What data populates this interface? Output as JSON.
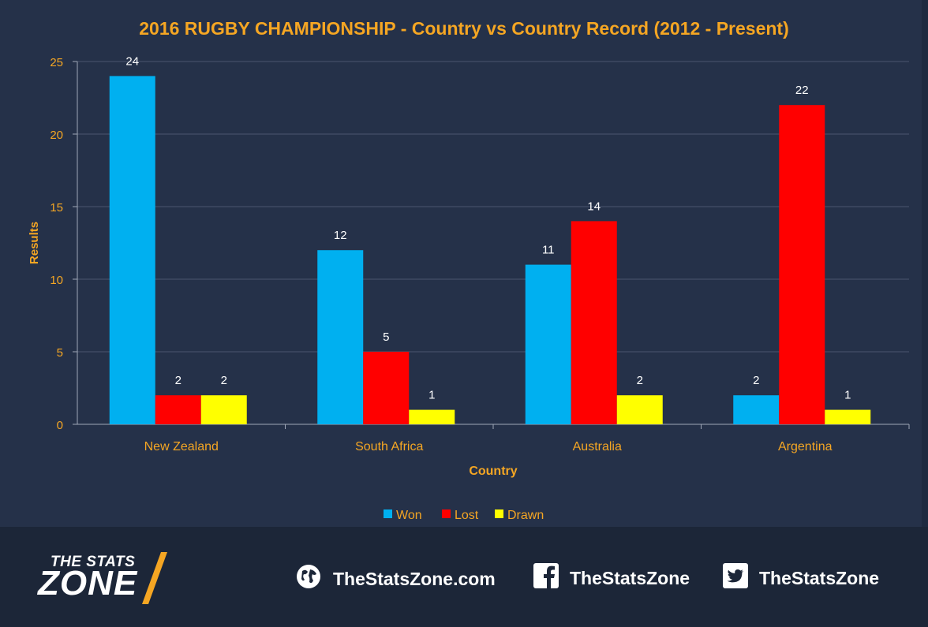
{
  "chart_data": {
    "type": "bar",
    "title": "2016 RUGBY CHAMPIONSHIP - Country vs Country Record  (2012 - Present)",
    "xlabel": "Country",
    "ylabel": "Results",
    "categories": [
      "New Zealand",
      "South Africa",
      "Australia",
      "Argentina"
    ],
    "series": [
      {
        "name": "Won",
        "color": "#00b0f0",
        "values": [
          24,
          12,
          11,
          2
        ]
      },
      {
        "name": "Lost",
        "color": "#ff0000",
        "values": [
          2,
          5,
          14,
          22
        ]
      },
      {
        "name": "Drawn",
        "color": "#ffff00",
        "values": [
          2,
          1,
          2,
          1
        ]
      }
    ],
    "ylim": [
      0,
      25
    ],
    "yticks": [
      "0",
      "5",
      "10",
      "15",
      "20",
      "25"
    ],
    "grid": true,
    "legend": "bottom",
    "data_labels": true
  },
  "colors": {
    "title": "#f5a623",
    "axis_label": "#f5a623",
    "tick_label": "#f5a623",
    "grid": "#4a5570",
    "data_label": "#ffffff",
    "legend_text": "#f5a623",
    "background": "#253149"
  },
  "footer": {
    "logo_top": "THE STATS",
    "logo_bottom": "ZONE",
    "website": "TheStatsZone.com",
    "facebook": "TheStatsZone",
    "twitter": "TheStatsZone",
    "icons": [
      "globe-icon",
      "facebook-icon",
      "twitter-icon"
    ]
  }
}
